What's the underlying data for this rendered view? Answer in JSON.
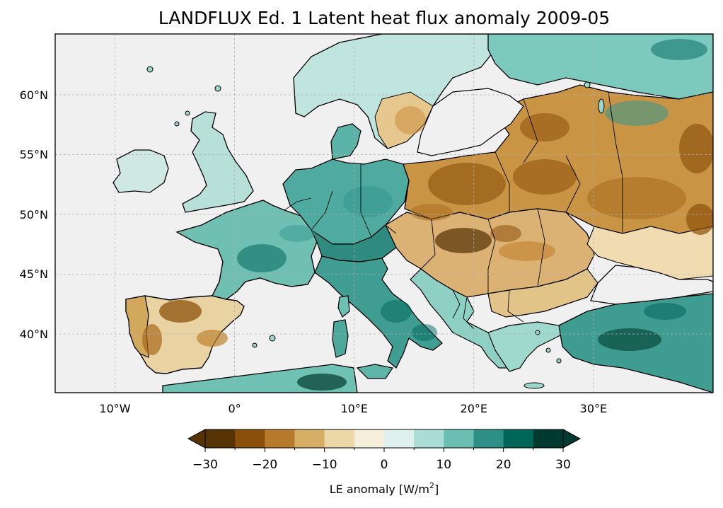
{
  "title": "LANDFLUX Ed. 1 Latent heat flux anomaly 2009-05",
  "map": {
    "projection": "PlateCarree",
    "extent_lon": [
      -15,
      40
    ],
    "extent_lat": [
      35,
      65
    ],
    "ocean_color": "#f0f0f0",
    "gridlines": "dashed",
    "lon_ticks": [
      "10°W",
      "0°",
      "10°E",
      "20°E",
      "30°E"
    ],
    "lat_ticks": [
      "60°N",
      "55°N",
      "50°N",
      "45°N",
      "40°N"
    ]
  },
  "colorbar": {
    "label_main": "LE anomaly [W/m",
    "label_sup": "2",
    "label_end": "]",
    "extend": "both",
    "tick_labels": [
      "−30",
      "−20",
      "−10",
      "0",
      "10",
      "20",
      "30"
    ],
    "colors": [
      "#543005",
      "#8c510a",
      "#bf812d",
      "#dfc27d",
      "#f6e8c3",
      "#f5f5f5",
      "#c7eae5",
      "#80cdc1",
      "#35978f",
      "#01665e",
      "#003c30"
    ],
    "level_colors": [
      "#573205",
      "#8a4f0b",
      "#b67a2c",
      "#d6ae66",
      "#ecd7a8",
      "#f4eedb",
      "#dff1ef",
      "#a9ddd6",
      "#6bbfb2",
      "#2e8f86",
      "#006658",
      "#00392f"
    ]
  }
}
